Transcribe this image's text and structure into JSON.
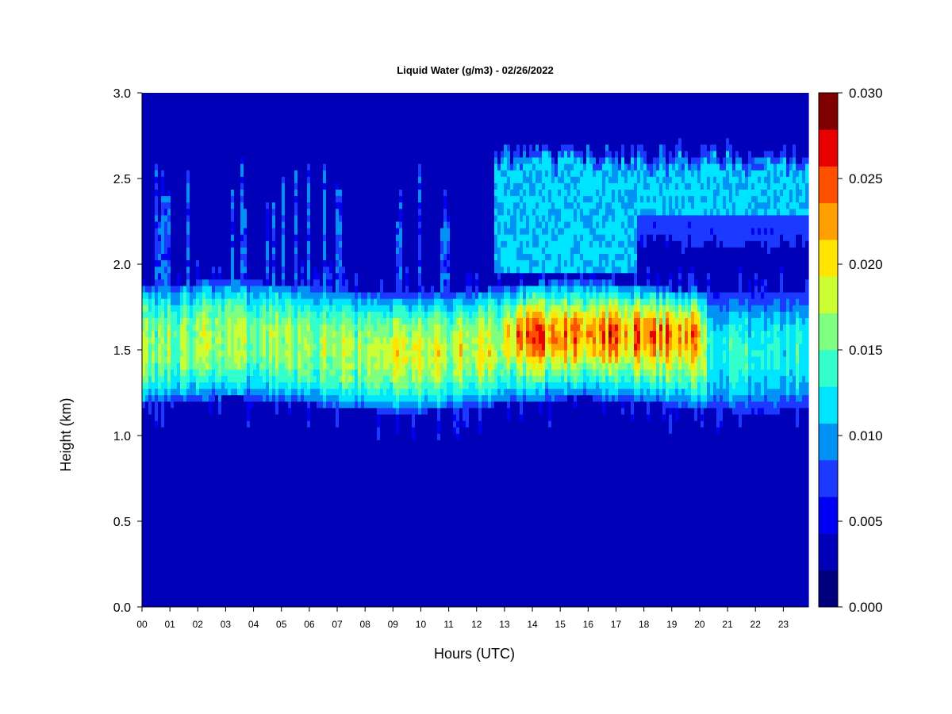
{
  "chart_data": {
    "type": "heatmap",
    "title": "Liquid Water (g/m3) - 02/26/2022",
    "xlabel": "Hours (UTC)",
    "ylabel": "Height (km)",
    "xlim": [
      0,
      23.9
    ],
    "ylim": [
      0.0,
      3.0
    ],
    "x_ticks": [
      "00",
      "01",
      "02",
      "03",
      "04",
      "05",
      "06",
      "07",
      "08",
      "09",
      "10",
      "11",
      "12",
      "13",
      "14",
      "15",
      "16",
      "17",
      "18",
      "19",
      "20",
      "21",
      "22",
      "23"
    ],
    "y_ticks": [
      "0.0",
      "0.5",
      "1.0",
      "1.5",
      "2.0",
      "2.5",
      "3.0"
    ],
    "colorbar": {
      "levels": [
        0.0,
        0.0025,
        0.005,
        0.0075,
        0.01,
        0.0125,
        0.015,
        0.0175,
        0.02,
        0.0225,
        0.025,
        0.0275,
        0.03
      ],
      "tick_labels": [
        "0.000",
        "0.005",
        "0.010",
        "0.015",
        "0.020",
        "0.025",
        "0.030"
      ],
      "colors": [
        "#00007f",
        "#0000b8",
        "#0000f5",
        "#1c39ff",
        "#0093f5",
        "#00e5ff",
        "#33ffcc",
        "#7fff7f",
        "#ccff33",
        "#ffe500",
        "#ffa000",
        "#ff5000",
        "#e80000",
        "#7f0000"
      ]
    },
    "layers": [
      {
        "name": "lower cloud layer",
        "height_range_km": [
          1.1,
          1.9
        ],
        "hours": [
          0,
          23.9
        ],
        "typical_value": 0.017,
        "peak_value": 0.027,
        "peak_hours": [
          13,
          20
        ],
        "peak_height_km": 1.6
      },
      {
        "name": "upper cloud layer",
        "height_range_km": [
          1.95,
          2.72
        ],
        "hours": [
          12.6,
          23.9
        ],
        "typical_value": 0.0105
      }
    ]
  }
}
